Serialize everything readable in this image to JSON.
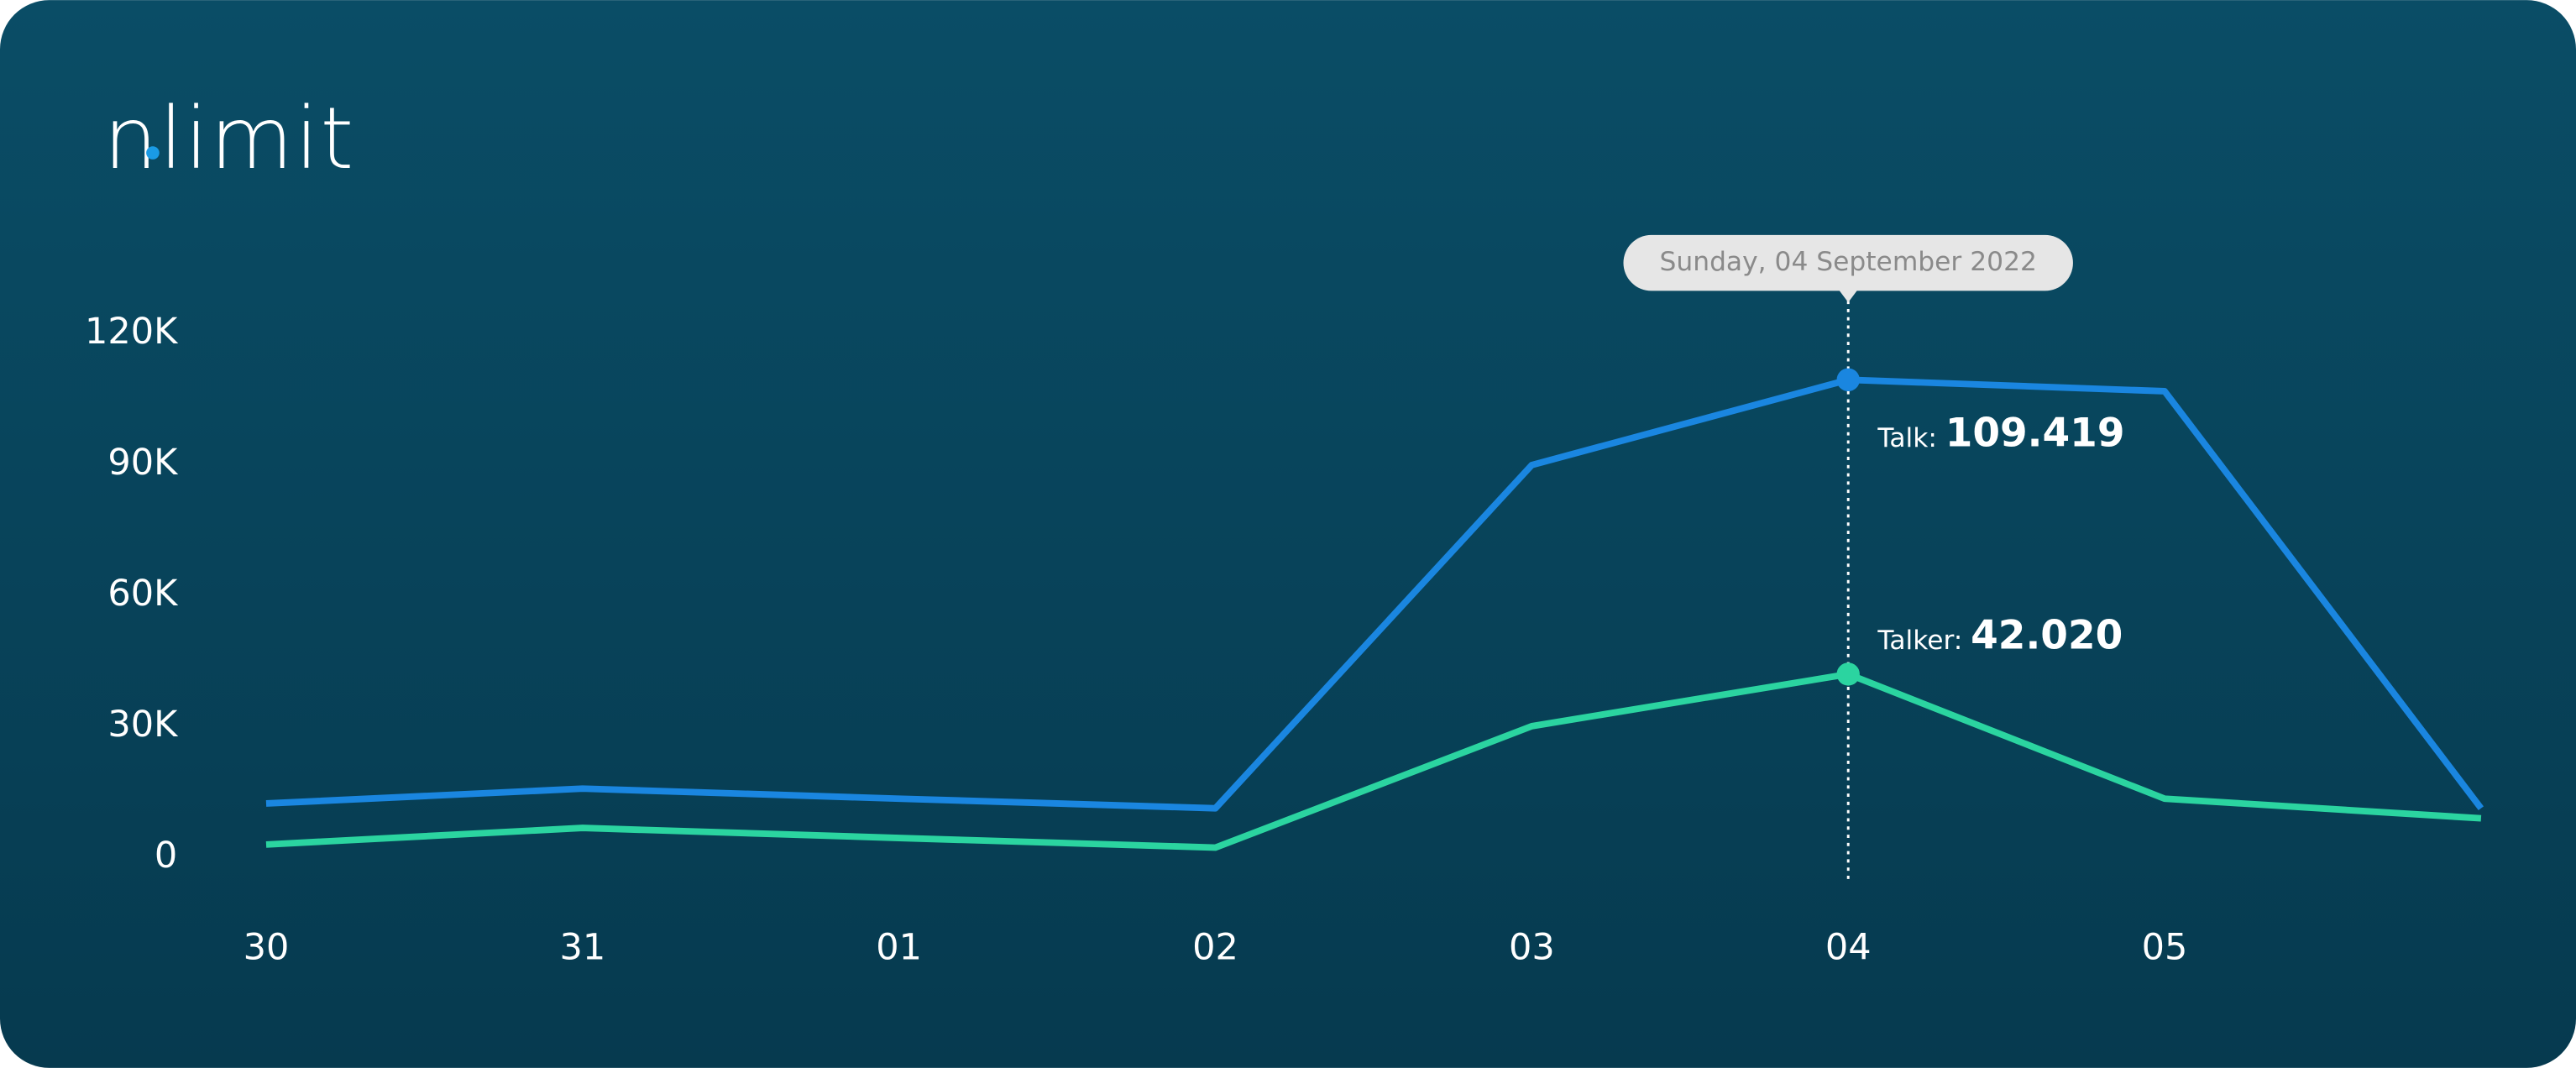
{
  "chart_data": {
    "type": "line",
    "logo": "nlimit",
    "annotation": "Sunday, 04 September 2022",
    "categories": [
      "30",
      "31",
      "01",
      "02",
      "03",
      "04",
      "05",
      null
    ],
    "series": [
      {
        "name": "Talk:",
        "color": "#1a86e0",
        "values": [
          12400,
          15800,
          13500,
          11300,
          89900,
          109419,
          106800,
          11300
        ],
        "value_labels": [
          null,
          null,
          null,
          null,
          null,
          "109.419",
          null,
          null
        ]
      },
      {
        "name": "Talker:",
        "color": "#2bd4a0",
        "values": [
          3000,
          6800,
          4500,
          2300,
          30100,
          42020,
          13500,
          9000
        ],
        "value_labels": [
          null,
          null,
          null,
          null,
          null,
          "42.020",
          null,
          null
        ]
      }
    ],
    "ylim": [
      0,
      120000
    ],
    "yticks": [
      0,
      {
        "value": 30000,
        "label": "30K"
      },
      {
        "value": 60000,
        "label": "60K"
      },
      {
        "value": 90000,
        "label": "90K"
      },
      {
        "value": 120000,
        "label": "120K"
      }
    ],
    "grid": false
  }
}
